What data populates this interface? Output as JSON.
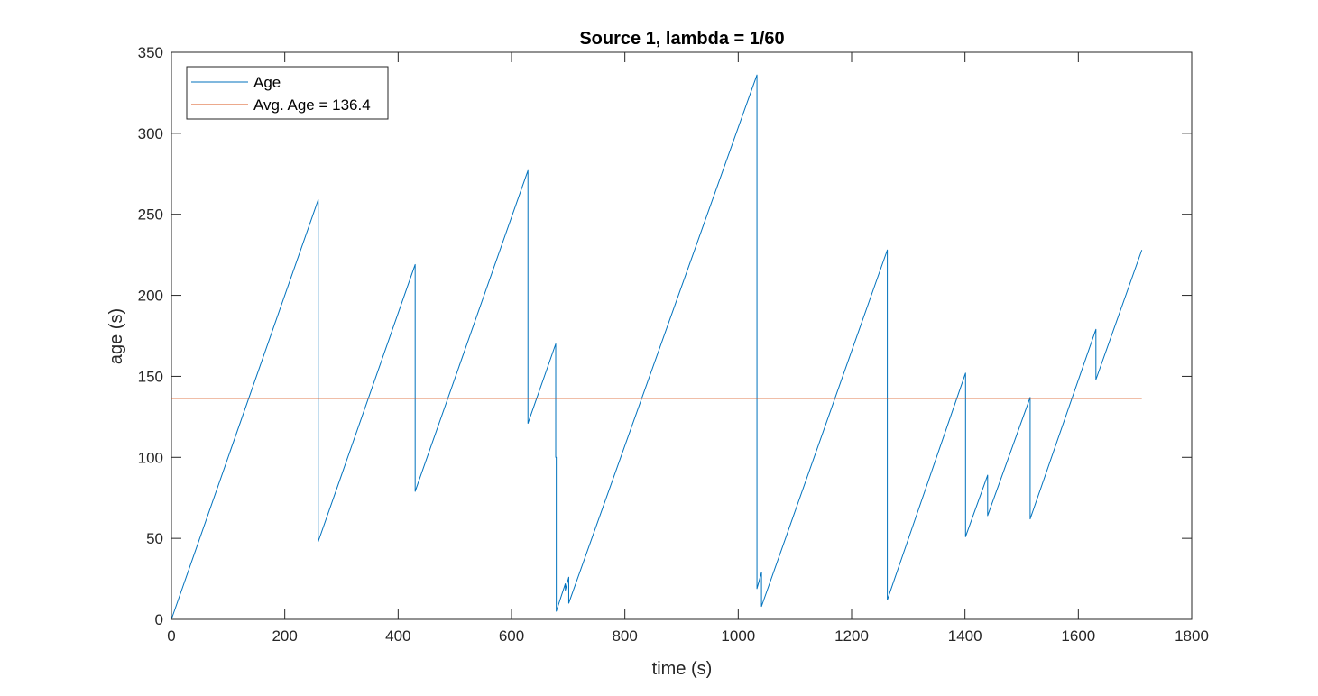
{
  "chart_data": {
    "type": "line",
    "title": "Source 1, lambda = 1/60",
    "xlabel": "time (s)",
    "ylabel": "age (s)",
    "xlim": [
      0,
      1800
    ],
    "ylim": [
      0,
      350
    ],
    "xticks": [
      "0",
      "200",
      "400",
      "600",
      "800",
      "1000",
      "1200",
      "1400",
      "1600",
      "1800"
    ],
    "yticks": [
      "0",
      "50",
      "100",
      "150",
      "200",
      "250",
      "300",
      "350"
    ],
    "grid": false,
    "legend_position": "top-left",
    "series": [
      {
        "name": "Age",
        "color": "#0072BD",
        "x": [
          0,
          259,
          259,
          430,
          430,
          629,
          629,
          678,
          678,
          679,
          679,
          695,
          695,
          701,
          701,
          1033,
          1033,
          1041,
          1041,
          1263,
          1263,
          1401,
          1401,
          1440,
          1440,
          1515,
          1515,
          1631,
          1631,
          1712
        ],
        "y": [
          0,
          259,
          48,
          219,
          79,
          277,
          121,
          170,
          100,
          100,
          5,
          22,
          18,
          26,
          10,
          336,
          19,
          29,
          8,
          228,
          12,
          152,
          51,
          89,
          64,
          137,
          62,
          179,
          148,
          228
        ]
      },
      {
        "name": "Avg. Age = 136.4",
        "color": "#D95319",
        "x": [
          0,
          1712
        ],
        "y": [
          136.4,
          136.4
        ]
      }
    ]
  }
}
